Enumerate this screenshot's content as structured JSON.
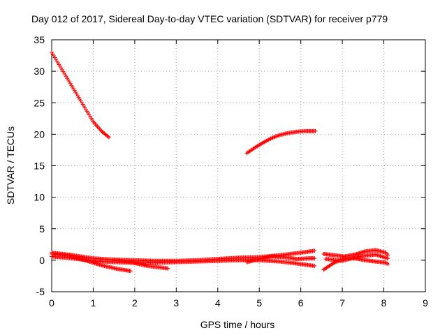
{
  "chart_data": {
    "type": "scatter",
    "title": "Day 012 of 2017, Sidereal Day-to-day VTEC variation (SDTVAR) for receiver p779",
    "xlabel": "GPS time / hours",
    "ylabel": "SDTVAR / TECUs",
    "xlim": [
      0,
      9
    ],
    "ylim": [
      -5,
      35
    ],
    "x_ticks": [
      "0",
      "1",
      "2",
      "3",
      "4",
      "5",
      "6",
      "7",
      "8",
      "9"
    ],
    "y_ticks": [
      "-5",
      "0",
      "5",
      "10",
      "15",
      "20",
      "25",
      "30",
      "35"
    ],
    "grid": true,
    "color": "#ff0000",
    "series": [
      {
        "x": [
          0.0,
          0.2,
          0.4,
          0.6,
          0.8,
          1.0,
          1.2,
          1.38
        ],
        "y": [
          33.0,
          30.8,
          28.6,
          26.4,
          24.2,
          22.0,
          20.5,
          19.5
        ]
      },
      {
        "x": [
          4.7,
          4.9,
          5.1,
          5.3,
          5.5,
          5.7,
          5.9,
          6.1,
          6.35
        ],
        "y": [
          17.0,
          17.9,
          18.7,
          19.4,
          19.9,
          20.2,
          20.4,
          20.5,
          20.5
        ]
      },
      {
        "x": [
          0.0,
          0.5,
          1.0,
          1.5,
          2.0,
          2.5,
          3.0,
          3.5,
          4.0,
          4.5,
          5.0,
          5.5,
          6.0,
          6.33
        ],
        "y": [
          1.2,
          0.8,
          0.3,
          0.1,
          0.0,
          -0.1,
          -0.1,
          0.0,
          0.2,
          0.4,
          0.5,
          0.8,
          1.2,
          1.5
        ]
      },
      {
        "x": [
          0.0,
          0.5,
          1.0,
          1.5,
          2.0,
          2.5,
          3.0,
          3.5,
          4.0,
          4.5,
          5.0,
          5.5,
          6.0,
          6.33
        ],
        "y": [
          0.6,
          0.3,
          -0.1,
          -0.3,
          -0.4,
          -0.4,
          -0.3,
          -0.2,
          -0.1,
          0.0,
          0.0,
          -0.2,
          -0.6,
          -0.9
        ]
      },
      {
        "x": [
          0.0,
          0.4,
          0.8,
          1.2,
          1.6,
          1.9
        ],
        "y": [
          1.0,
          0.8,
          0.0,
          -0.8,
          -1.4,
          -1.7
        ]
      },
      {
        "x": [
          1.5,
          1.9,
          2.3,
          2.8
        ],
        "y": [
          0.0,
          -0.3,
          -0.9,
          -1.3
        ]
      },
      {
        "x": [
          4.7,
          5.0,
          5.3,
          5.6,
          5.9,
          6.2,
          6.33
        ],
        "y": [
          -0.3,
          0.2,
          0.6,
          0.5,
          0.2,
          0.3,
          0.3
        ]
      },
      {
        "x": [
          6.55,
          6.8,
          7.05,
          7.3,
          7.55,
          7.8,
          8.05,
          8.1
        ],
        "y": [
          1.0,
          0.8,
          0.6,
          0.9,
          1.4,
          1.6,
          1.2,
          0.8
        ]
      },
      {
        "x": [
          6.55,
          6.8,
          7.05,
          7.3,
          7.55,
          7.8,
          8.05,
          8.1
        ],
        "y": [
          -1.5,
          -0.4,
          0.3,
          0.3,
          0.0,
          -0.2,
          -0.4,
          -0.6
        ]
      },
      {
        "x": [
          6.6,
          7.0,
          7.4,
          7.8,
          8.1
        ],
        "y": [
          0.2,
          -0.1,
          0.6,
          0.9,
          0.3
        ]
      }
    ]
  }
}
